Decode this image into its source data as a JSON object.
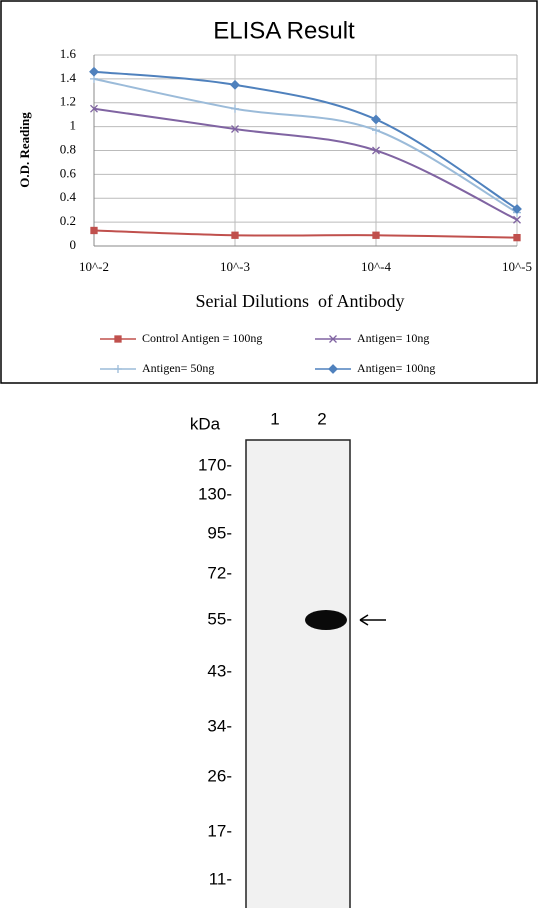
{
  "chart_data": {
    "type": "line",
    "title": "ELISA Result",
    "y_label": "O.D. Reading",
    "x_label": "Serial Dilutions  of Antibody",
    "categories": [
      "10^-2",
      "10^-3",
      "10^-4",
      "10^-5"
    ],
    "series": [
      {
        "name": "Control Antigen = 100ng",
        "color": "#c0504d",
        "marker": "square",
        "values": [
          0.13,
          0.09,
          0.09,
          0.07
        ]
      },
      {
        "name": "Antigen= 10ng",
        "color": "#8064a2",
        "marker": "x",
        "values": [
          1.15,
          0.98,
          0.8,
          0.22
        ]
      },
      {
        "name": "Antigen= 50ng",
        "color": "#9bbbd9",
        "marker": "plus",
        "values": [
          1.4,
          1.15,
          0.97,
          0.28
        ]
      },
      {
        "name": "Antigen= 100ng",
        "color": "#4f81bd",
        "marker": "diamond",
        "values": [
          1.46,
          1.35,
          1.06,
          0.31
        ]
      }
    ],
    "ylim": [
      0,
      1.6
    ],
    "yticks": [
      0,
      0.2,
      0.4,
      0.6,
      0.8,
      1,
      1.2,
      1.4,
      1.6
    ],
    "grid": true
  },
  "blot": {
    "unit_label": "kDa",
    "lanes": [
      "1",
      "2"
    ],
    "markers": [
      "170-",
      "130-",
      "95-",
      "72-",
      "55-",
      "43-",
      "34-",
      "26-",
      "17-",
      "11-"
    ]
  }
}
